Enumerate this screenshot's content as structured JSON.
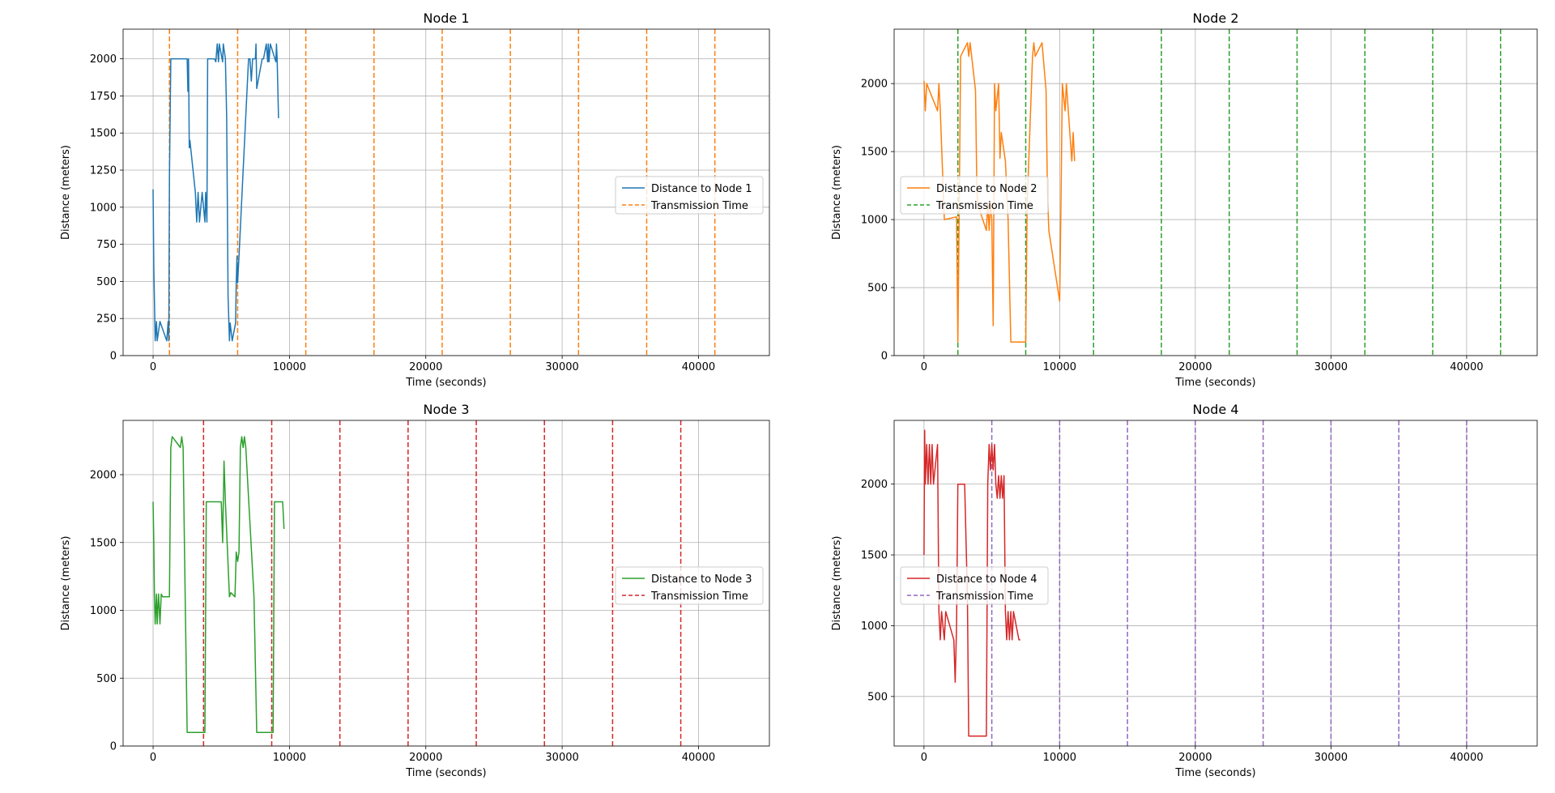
{
  "chart_data": [
    {
      "type": "line",
      "title": "Node 1",
      "xlabel": "Time (seconds)",
      "ylabel": "Distance (meters)",
      "xlim": [
        -2200,
        45200
      ],
      "ylim": [
        0,
        2200
      ],
      "xticks": [
        0,
        10000,
        20000,
        30000,
        40000
      ],
      "yticks": [
        0,
        250,
        500,
        750,
        1000,
        1250,
        1500,
        1750,
        2000
      ],
      "grid": true,
      "legend": "center-right",
      "color": "#1f77b4",
      "vline_color": "#ff7f0e",
      "series": [
        {
          "name": "Distance to Node 1",
          "x": [
            0,
            50,
            120,
            150,
            250,
            300,
            500,
            1000,
            1100,
            1150,
            1200,
            1300,
            1400,
            1500,
            2500,
            2550,
            2600,
            2650,
            2700,
            3100,
            3200,
            3300,
            3400,
            3600,
            3800,
            3850,
            3950,
            4000,
            4100,
            4500,
            4600,
            4700,
            4800,
            4850,
            5100,
            5150,
            5300,
            5400,
            5500,
            5600,
            5650,
            5800,
            6050,
            6100,
            6150,
            6200,
            6300,
            7000,
            7100,
            7200,
            7300,
            7400,
            7500,
            7550,
            7600,
            8000,
            8100,
            8300,
            8400,
            8450,
            8500,
            8600,
            9000,
            9050,
            9100,
            9200
          ],
          "y": [
            1120,
            600,
            250,
            100,
            230,
            100,
            230,
            100,
            230,
            100,
            1200,
            2000,
            2000,
            2000,
            2000,
            1780,
            2000,
            1400,
            1450,
            1100,
            900,
            1100,
            900,
            1100,
            900,
            1100,
            900,
            2000,
            2000,
            2000,
            1980,
            2100,
            1980,
            2100,
            1980,
            2100,
            2000,
            1600,
            400,
            100,
            220,
            100,
            220,
            490,
            670,
            490,
            670,
            2000,
            2000,
            1850,
            2000,
            2000,
            2000,
            2100,
            1800,
            2000,
            2000,
            2100,
            1980,
            2100,
            1980,
            2100,
            1980,
            2100,
            2000,
            1600
          ]
        }
      ],
      "transmission_times": [
        1200,
        6200,
        11200,
        16200,
        21200,
        26200,
        31200,
        36200,
        41200
      ],
      "transmission_label": "Transmission Time"
    },
    {
      "type": "line",
      "title": "Node 2",
      "xlabel": "Time (seconds)",
      "ylabel": "Distance (meters)",
      "xlim": [
        -2200,
        45200
      ],
      "ylim": [
        0,
        2400
      ],
      "xticks": [
        0,
        10000,
        20000,
        30000,
        40000
      ],
      "yticks": [
        0,
        500,
        1000,
        1500,
        2000
      ],
      "grid": true,
      "legend": "center-left",
      "color": "#ff7f0e",
      "vline_color": "#2ca02c",
      "series": [
        {
          "name": "Distance to Node 2",
          "x": [
            0,
            100,
            200,
            1000,
            1100,
            1200,
            1500,
            2400,
            2500,
            2600,
            2700,
            3200,
            3300,
            3400,
            3800,
            3900,
            4000,
            4600,
            4700,
            4800,
            4900,
            5000,
            5100,
            5200,
            5300,
            5500,
            5600,
            5700,
            6000,
            6200,
            6400,
            6500,
            7400,
            7500,
            7600,
            8000,
            8100,
            8200,
            8700,
            9000,
            9100,
            9200,
            10000,
            10100,
            10200,
            10400,
            10500,
            10900,
            11000,
            11100
          ],
          "y": [
            2020,
            1800,
            2000,
            1800,
            2000,
            1800,
            1000,
            1020,
            100,
            1100,
            2200,
            2300,
            2200,
            2300,
            1950,
            1200,
            1100,
            920,
            1120,
            920,
            1120,
            1000,
            220,
            2000,
            1800,
            2000,
            1450,
            1640,
            1430,
            1000,
            100,
            100,
            100,
            100,
            1100,
            2200,
            2300,
            2200,
            2300,
            1950,
            1200,
            920,
            400,
            1120,
            2000,
            1800,
            2000,
            1430,
            1640,
            1430
          ]
        }
      ],
      "transmission_times": [
        2500,
        7500,
        12500,
        17500,
        22500,
        27500,
        32500,
        37500,
        42500
      ],
      "transmission_label": "Transmission Time"
    },
    {
      "type": "line",
      "title": "Node 3",
      "xlabel": "Time (seconds)",
      "ylabel": "Distance (meters)",
      "xlim": [
        -2200,
        45200
      ],
      "ylim": [
        0,
        2400
      ],
      "xticks": [
        0,
        10000,
        20000,
        30000,
        40000
      ],
      "yticks": [
        0,
        500,
        1000,
        1500,
        2000
      ],
      "grid": true,
      "legend": "center-right",
      "color": "#2ca02c",
      "vline_color": "#d62728",
      "series": [
        {
          "name": "Distance to Node 3",
          "x": [
            0,
            50,
            100,
            150,
            250,
            300,
            400,
            500,
            600,
            700,
            800,
            900,
            1200,
            1300,
            1400,
            2000,
            2100,
            2200,
            2300,
            2500,
            2600,
            3700,
            3800,
            3900,
            4500,
            4900,
            5000,
            5100,
            5200,
            5300,
            5600,
            5700,
            6000,
            6100,
            6200,
            6300,
            6400,
            6500,
            6600,
            6700,
            6800,
            7400,
            7600,
            7700,
            8000,
            8100,
            8800,
            8900,
            9000,
            9500,
            9600
          ],
          "y": [
            1800,
            1500,
            1100,
            900,
            1120,
            900,
            1120,
            900,
            1120,
            1100,
            1100,
            1100,
            1100,
            2200,
            2280,
            2200,
            2280,
            2200,
            1450,
            100,
            100,
            100,
            100,
            1800,
            1800,
            1800,
            1800,
            1500,
            2100,
            1800,
            1100,
            1130,
            1100,
            1430,
            1360,
            1430,
            2200,
            2280,
            2200,
            2280,
            2200,
            1100,
            100,
            100,
            100,
            100,
            100,
            1800,
            1800,
            1800,
            1600
          ]
        }
      ],
      "transmission_times": [
        3700,
        8700,
        13700,
        18700,
        23700,
        28700,
        33700,
        38700
      ],
      "transmission_label": "Transmission Time"
    },
    {
      "type": "line",
      "title": "Node 4",
      "xlabel": "Time (seconds)",
      "ylabel": "Distance (meters)",
      "xlim": [
        -2200,
        45200
      ],
      "ylim": [
        150,
        2450
      ],
      "xticks": [
        0,
        10000,
        20000,
        30000,
        40000
      ],
      "yticks": [
        500,
        1000,
        1500,
        2000
      ],
      "grid": true,
      "legend": "center-left",
      "color": "#d62728",
      "vline_color": "#9467bd",
      "series": [
        {
          "name": "Distance to Node 4",
          "x": [
            0,
            50,
            100,
            200,
            300,
            400,
            500,
            600,
            700,
            1000,
            1100,
            1200,
            1300,
            1500,
            1600,
            2200,
            2300,
            2400,
            2500,
            2600,
            2800,
            3000,
            3200,
            3300,
            3400,
            3500,
            3600,
            3700,
            4400,
            4600,
            4700,
            4800,
            4900,
            5000,
            5100,
            5200,
            5300,
            5400,
            5500,
            5600,
            5700,
            5800,
            5900,
            6000,
            6100,
            6200,
            6300,
            6400,
            6500,
            6600,
            7000,
            7100
          ],
          "y": [
            1500,
            2380,
            2000,
            2280,
            2000,
            2280,
            2000,
            2280,
            2000,
            2280,
            1100,
            900,
            1100,
            900,
            1100,
            900,
            600,
            1000,
            2000,
            2000,
            2000,
            2000,
            1200,
            220,
            220,
            220,
            220,
            220,
            220,
            220,
            2000,
            2280,
            2100,
            2280,
            2100,
            2280,
            2000,
            1900,
            2060,
            1900,
            2060,
            1900,
            2060,
            1100,
            900,
            1100,
            900,
            1100,
            900,
            1100,
            900,
            900
          ]
        }
      ],
      "transmission_times": [
        5000,
        10000,
        15000,
        20000,
        25000,
        30000,
        35000,
        40000
      ],
      "transmission_label": "Transmission Time"
    }
  ]
}
